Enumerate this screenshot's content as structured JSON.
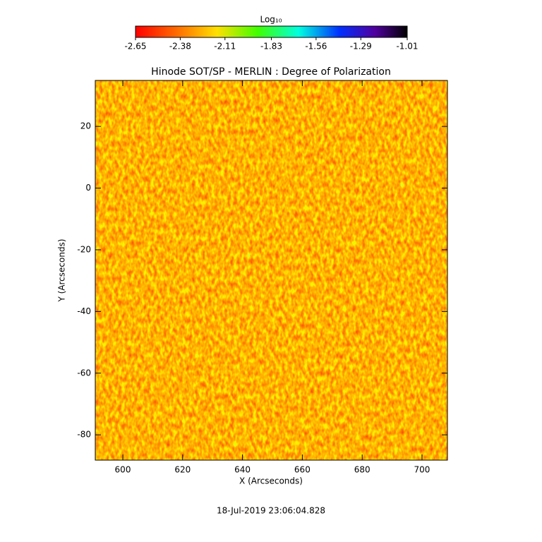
{
  "chart_data": {
    "type": "image",
    "title": "Hinode SOT/SP - MERLIN : Degree of Polarization",
    "xlabel": "X (Arcseconds)",
    "ylabel": "Y (Arcseconds)",
    "xlim": [
      590.8,
      708.5
    ],
    "xticks": [
      600,
      620,
      640,
      660,
      680,
      700
    ],
    "ylim": [
      -88.2,
      34.9
    ],
    "yticks": [
      -80,
      -60,
      -40,
      -20,
      0,
      20
    ],
    "colorbar": {
      "label": "Log₁₀",
      "clim": [
        -2.65,
        -1.01
      ],
      "ticks": [
        -2.65,
        -2.38,
        -2.11,
        -1.83,
        -1.56,
        -1.29,
        -1.01
      ]
    },
    "footer": "18-Jul-2019 23:06:04.828"
  }
}
